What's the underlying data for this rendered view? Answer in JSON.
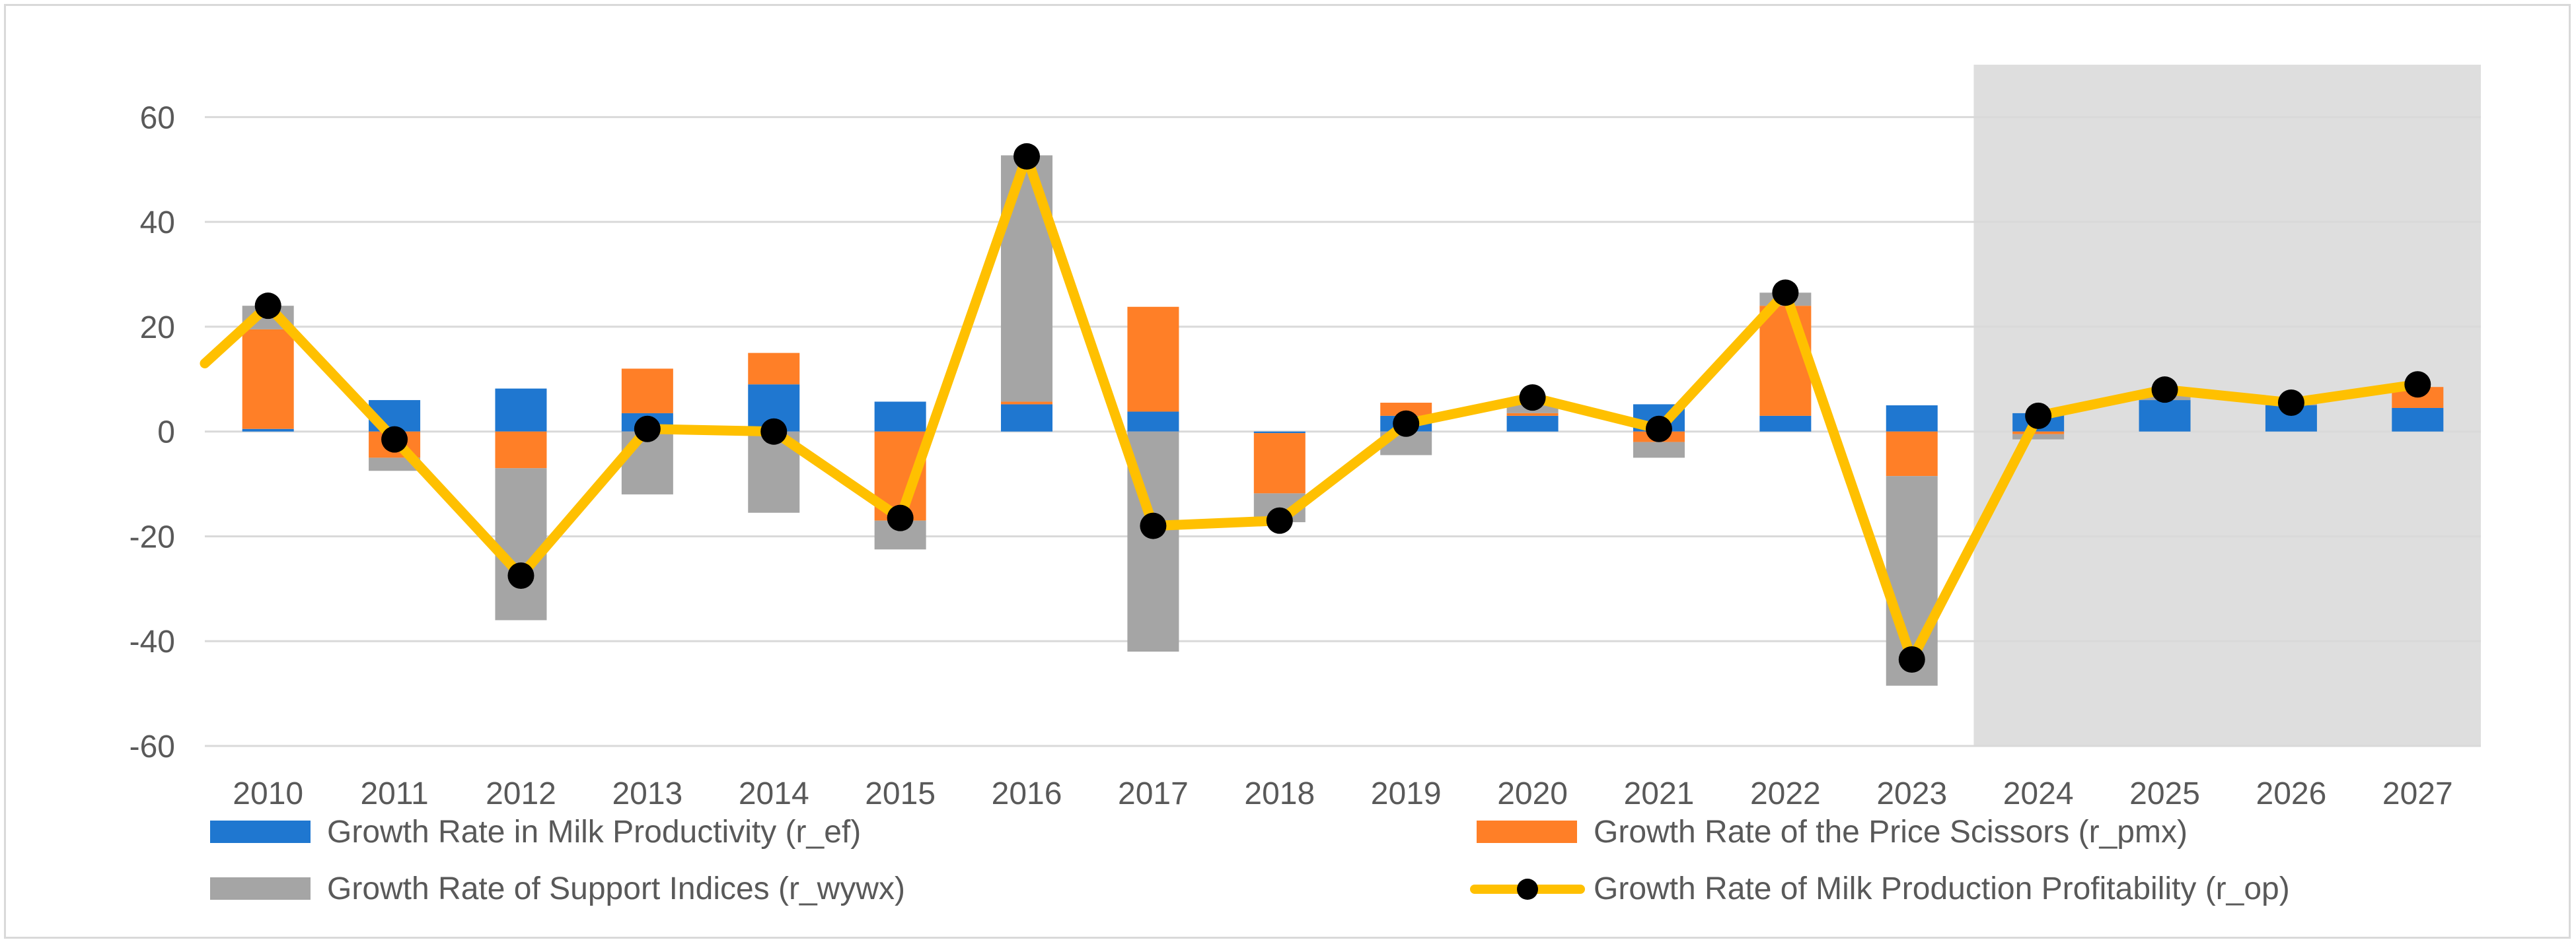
{
  "chart_data": {
    "type": "bar",
    "stacked": true,
    "categories": [
      "2010",
      "2011",
      "2012",
      "2013",
      "2014",
      "2015",
      "2016",
      "2017",
      "2018",
      "2019",
      "2020",
      "2021",
      "2022",
      "2023",
      "2024",
      "2025",
      "2026",
      "2027"
    ],
    "ylim": [
      -60,
      70
    ],
    "yticks": [
      60,
      40,
      20,
      0,
      -20,
      -40,
      -60
    ],
    "grid": true,
    "forecast_shading_from": "2024",
    "legend_position": "bottom",
    "colors": {
      "r_ef": "#1f77d0",
      "r_pmx": "#ff7f27",
      "r_wywx": "#a5a5a5",
      "r_op": "#ffc000",
      "marker": "#000000",
      "grid": "#d9d9d9",
      "shade": "#dedede"
    },
    "series": [
      {
        "key": "r_ef",
        "name": "Growth Rate in Milk Productivity (r_ef)",
        "type": "bar",
        "values": [
          0.5,
          6,
          8.2,
          3.5,
          9,
          5.7,
          5.2,
          3.8,
          -0.3,
          3,
          3,
          5.2,
          3,
          5,
          3.5,
          6,
          5,
          4.5
        ]
      },
      {
        "key": "r_pmx",
        "name": "Growth Rate of the Price Scissors (r_pmx)",
        "type": "bar",
        "values": [
          19,
          -5,
          -7,
          8.5,
          6,
          -17,
          0.5,
          20,
          -11.5,
          2.5,
          0.5,
          -2,
          21,
          -8.5,
          -0.5,
          0,
          0,
          4
        ]
      },
      {
        "key": "r_wywx",
        "name": "Growth Rate of Support Indices (r_wywx)",
        "type": "bar",
        "values": [
          4.5,
          -2.5,
          -29,
          -12,
          -15.5,
          -5.5,
          47,
          -42,
          -5.5,
          -4.5,
          2,
          -3,
          2.5,
          -40,
          -1,
          1.5,
          0.5,
          0
        ]
      },
      {
        "key": "r_op",
        "name": "Growth Rate of Milk Production Profitability (r_op)",
        "type": "line",
        "start_value": 13,
        "values": [
          24,
          -1.5,
          -27.5,
          0.5,
          0,
          -16.5,
          52.5,
          -18,
          -17,
          1.5,
          6.5,
          0.5,
          26.5,
          -43.5,
          3,
          8,
          5.5,
          9
        ]
      }
    ]
  }
}
